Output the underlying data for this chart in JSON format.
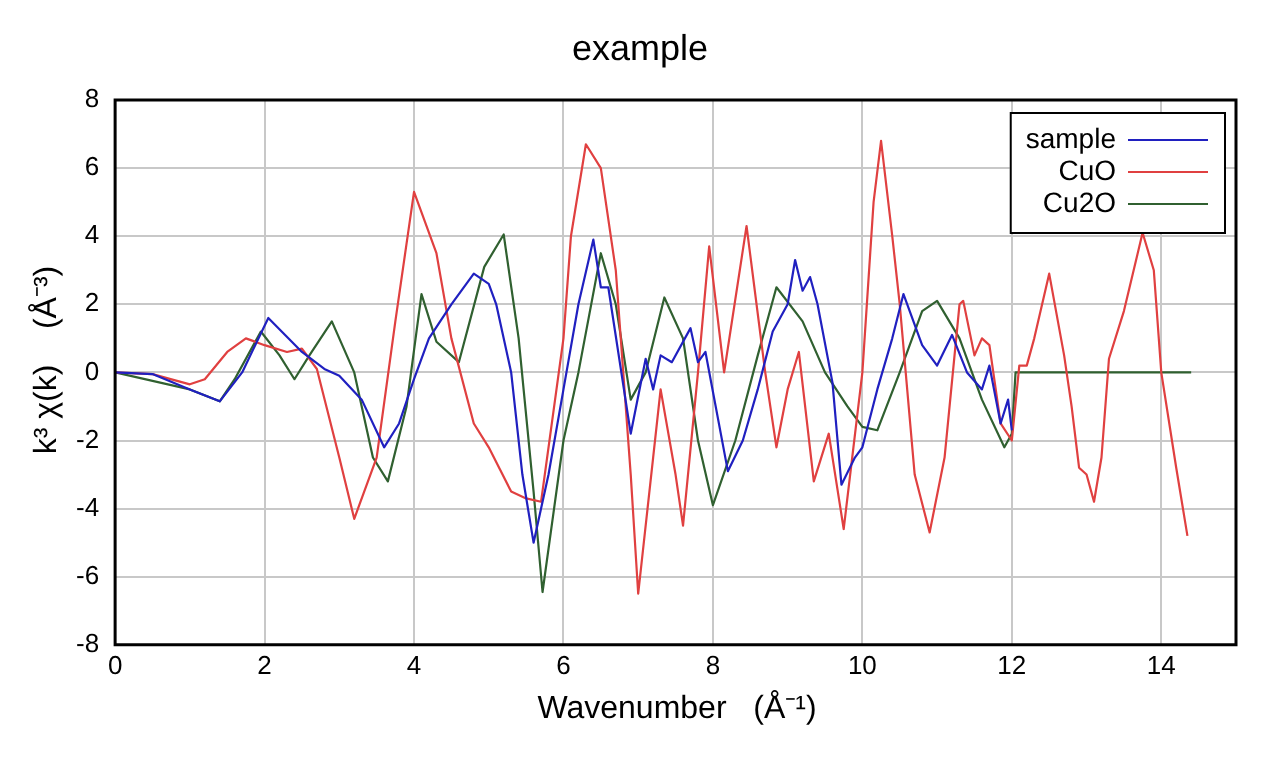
{
  "chart_data": {
    "type": "line",
    "title": "example",
    "xlabel": "Wavenumber   (Å⁻¹)",
    "ylabel": "k³ χ(k)    (Å⁻³)",
    "xlim": [
      0,
      15
    ],
    "xticks": [
      0,
      2,
      4,
      6,
      8,
      10,
      12,
      14
    ],
    "ylim": [
      -8,
      8
    ],
    "yticks": [
      -8,
      -6,
      -4,
      -2,
      0,
      2,
      4,
      6,
      8
    ],
    "grid": true,
    "legend": "top right",
    "marker": "none",
    "line_style": "solid",
    "series": [
      {
        "name": "sample",
        "color": "#2020c0",
        "x": [
          0,
          0.5,
          1.0,
          1.4,
          1.7,
          2.05,
          2.5,
          2.8,
          3.0,
          3.3,
          3.6,
          3.8,
          4.0,
          4.2,
          4.5,
          4.8,
          5.0,
          5.1,
          5.3,
          5.45,
          5.6,
          5.8,
          6.0,
          6.2,
          6.4,
          6.5,
          6.6,
          6.9,
          7.1,
          7.2,
          7.3,
          7.45,
          7.7,
          7.8,
          7.9,
          8.2,
          8.4,
          8.6,
          8.8,
          9.0,
          9.1,
          9.2,
          9.3,
          9.4,
          9.6,
          9.72,
          9.9,
          10.0,
          10.2,
          10.4,
          10.55,
          10.8,
          11.0,
          11.2,
          11.4,
          11.6,
          11.7,
          11.85,
          11.95,
          12.0
        ],
        "values": [
          0,
          -0.05,
          -0.5,
          -0.85,
          0,
          1.6,
          0.6,
          0.1,
          -0.1,
          -0.8,
          -2.2,
          -1.5,
          -0.2,
          1.0,
          2.0,
          2.9,
          2.6,
          2.0,
          0,
          -3.0,
          -5.0,
          -3.0,
          -0.5,
          2.0,
          3.9,
          2.5,
          2.5,
          -1.8,
          0.4,
          -0.5,
          0.5,
          0.3,
          1.3,
          0.3,
          0.6,
          -2.9,
          -2.0,
          -0.5,
          1.2,
          2.0,
          3.3,
          2.4,
          2.8,
          2.0,
          -0.3,
          -3.3,
          -2.5,
          -2.2,
          -0.5,
          1.0,
          2.3,
          0.8,
          0.2,
          1.1,
          0,
          -0.5,
          0.2,
          -1.5,
          -0.8,
          -1.7
        ]
      },
      {
        "name": "CuO",
        "color": "#e04040",
        "x": [
          0,
          0.5,
          1.0,
          1.2,
          1.5,
          1.75,
          2.0,
          2.3,
          2.5,
          2.7,
          3.0,
          3.2,
          3.5,
          3.75,
          4.0,
          4.3,
          4.5,
          4.8,
          5.0,
          5.3,
          5.5,
          5.7,
          6.0,
          6.1,
          6.3,
          6.5,
          6.7,
          6.9,
          7.0,
          7.2,
          7.3,
          7.5,
          7.6,
          7.8,
          7.95,
          8.15,
          8.45,
          8.7,
          8.85,
          9.0,
          9.15,
          9.35,
          9.55,
          9.75,
          10.0,
          10.15,
          10.25,
          10.4,
          10.5,
          10.7,
          10.9,
          11.1,
          11.3,
          11.35,
          11.5,
          11.6,
          11.7,
          11.85,
          12.0,
          12.1,
          12.2,
          12.3,
          12.5,
          12.7,
          12.8,
          12.9,
          13.0,
          13.1,
          13.2,
          13.3,
          13.5,
          13.75,
          13.9,
          14.0,
          14.2,
          14.35
        ],
        "values": [
          0,
          -0.05,
          -0.35,
          -0.2,
          0.6,
          1.0,
          0.8,
          0.6,
          0.7,
          0.1,
          -2.5,
          -4.3,
          -2.5,
          1.5,
          5.3,
          3.5,
          1.0,
          -1.5,
          -2.2,
          -3.5,
          -3.7,
          -3.8,
          1.0,
          4.0,
          6.7,
          6.0,
          3.0,
          -3.0,
          -6.5,
          -2.5,
          -0.5,
          -3.0,
          -4.5,
          0,
          3.7,
          0,
          4.3,
          0,
          -2.2,
          -0.5,
          0.6,
          -3.2,
          -1.8,
          -4.6,
          0,
          5.0,
          6.8,
          4.0,
          2.0,
          -3.0,
          -4.7,
          -2.5,
          2.0,
          2.1,
          0.5,
          1.0,
          0.8,
          -1.5,
          -2.0,
          0.2,
          0.2,
          1.0,
          2.9,
          0.5,
          -1.0,
          -2.8,
          -3.0,
          -3.8,
          -2.5,
          0.4,
          1.8,
          4.1,
          3.0,
          0,
          -2.8,
          -4.8
        ]
      },
      {
        "name": "Cu2O",
        "color": "#306030",
        "x": [
          0,
          1.0,
          1.4,
          1.6,
          1.95,
          2.2,
          2.4,
          2.6,
          2.9,
          3.2,
          3.45,
          3.65,
          3.9,
          4.1,
          4.3,
          4.6,
          4.94,
          5.2,
          5.4,
          5.6,
          5.72,
          6.0,
          6.2,
          6.5,
          6.7,
          6.9,
          7.1,
          7.35,
          7.6,
          7.8,
          8.0,
          8.3,
          8.6,
          8.85,
          9.2,
          9.5,
          9.8,
          10.0,
          10.2,
          10.5,
          10.8,
          11.0,
          11.3,
          11.6,
          11.9,
          12.0,
          12.05,
          14.4
        ],
        "values": [
          0,
          -0.5,
          -0.85,
          -0.2,
          1.2,
          0.5,
          -0.2,
          0.5,
          1.5,
          0,
          -2.5,
          -3.2,
          -1.0,
          2.3,
          0.9,
          0.3,
          3.1,
          4.05,
          1.0,
          -3.5,
          -6.45,
          -2.0,
          0,
          3.5,
          2.0,
          -0.8,
          0,
          2.2,
          1.0,
          -2.0,
          -3.9,
          -2.0,
          0.5,
          2.5,
          1.5,
          0,
          -1.0,
          -1.6,
          -1.7,
          0,
          1.8,
          2.1,
          1.0,
          -0.8,
          -2.2,
          -1.8,
          0,
          0
        ]
      }
    ]
  }
}
